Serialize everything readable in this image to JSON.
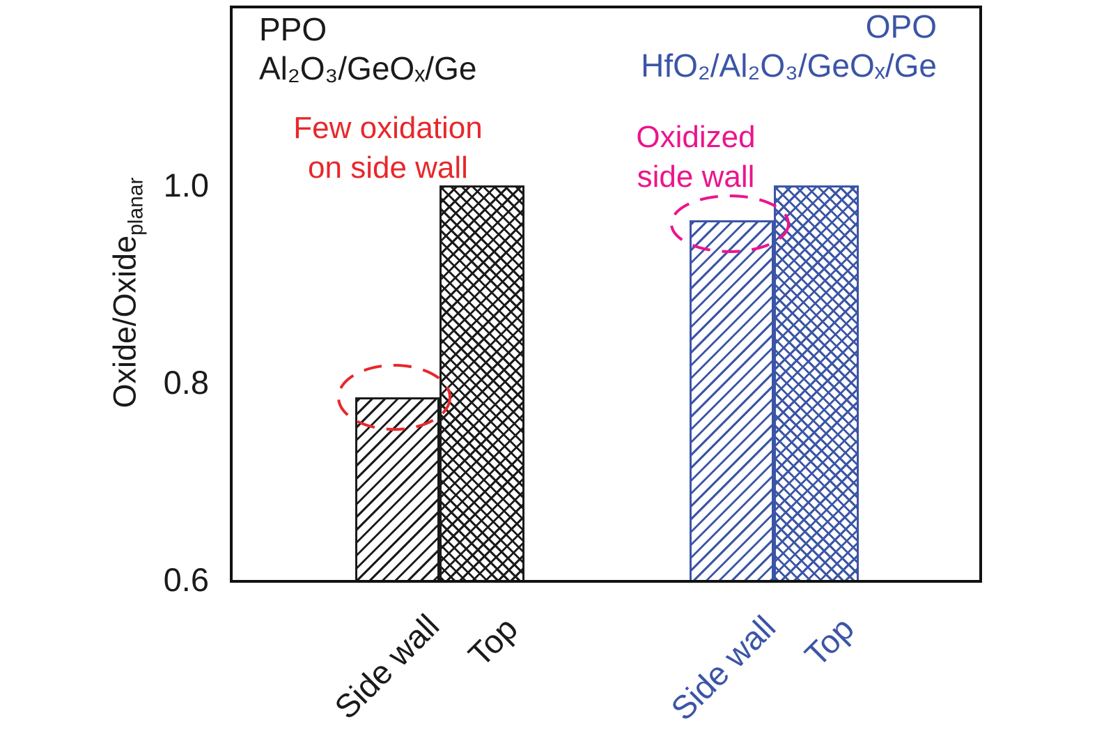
{
  "chart_data": {
    "type": "bar",
    "title": "",
    "xlabel": "",
    "ylabel": {
      "main": "Oxide/Oxide",
      "sub": "planar"
    },
    "ylim": [
      0.6,
      1.18
    ],
    "ytick_values": [
      0.6,
      0.8,
      1.0
    ],
    "ytick_labels": [
      "0.6",
      "0.8",
      "1.0"
    ],
    "grid": false,
    "legend": "none",
    "categories": [
      "Side wall",
      "Top"
    ],
    "groups": [
      {
        "name": "PPO",
        "material": "Al₂O₃/GeOₓ/Ge",
        "color": "#1a1a1a",
        "categories": [
          "Side wall",
          "Top"
        ],
        "values": [
          0.785,
          1.0
        ],
        "hatches": [
          "diagonal",
          "cross"
        ]
      },
      {
        "name": "OPO",
        "material": "HfO₂/Al₂O₃/GeOₓ/Ge",
        "color": "#3b55a6",
        "categories": [
          "Side wall",
          "Top"
        ],
        "values": [
          0.965,
          1.0
        ],
        "hatches": [
          "diagonal",
          "cross"
        ]
      }
    ],
    "annotations": [
      {
        "lines": [
          "Few oxidation",
          "on side wall"
        ],
        "color": "#e8272b",
        "target": "PPO Side wall bar top"
      },
      {
        "lines": [
          "Oxidized",
          "side wall"
        ],
        "color": "#ec148d",
        "target": "OPO Side wall bar top"
      }
    ]
  }
}
